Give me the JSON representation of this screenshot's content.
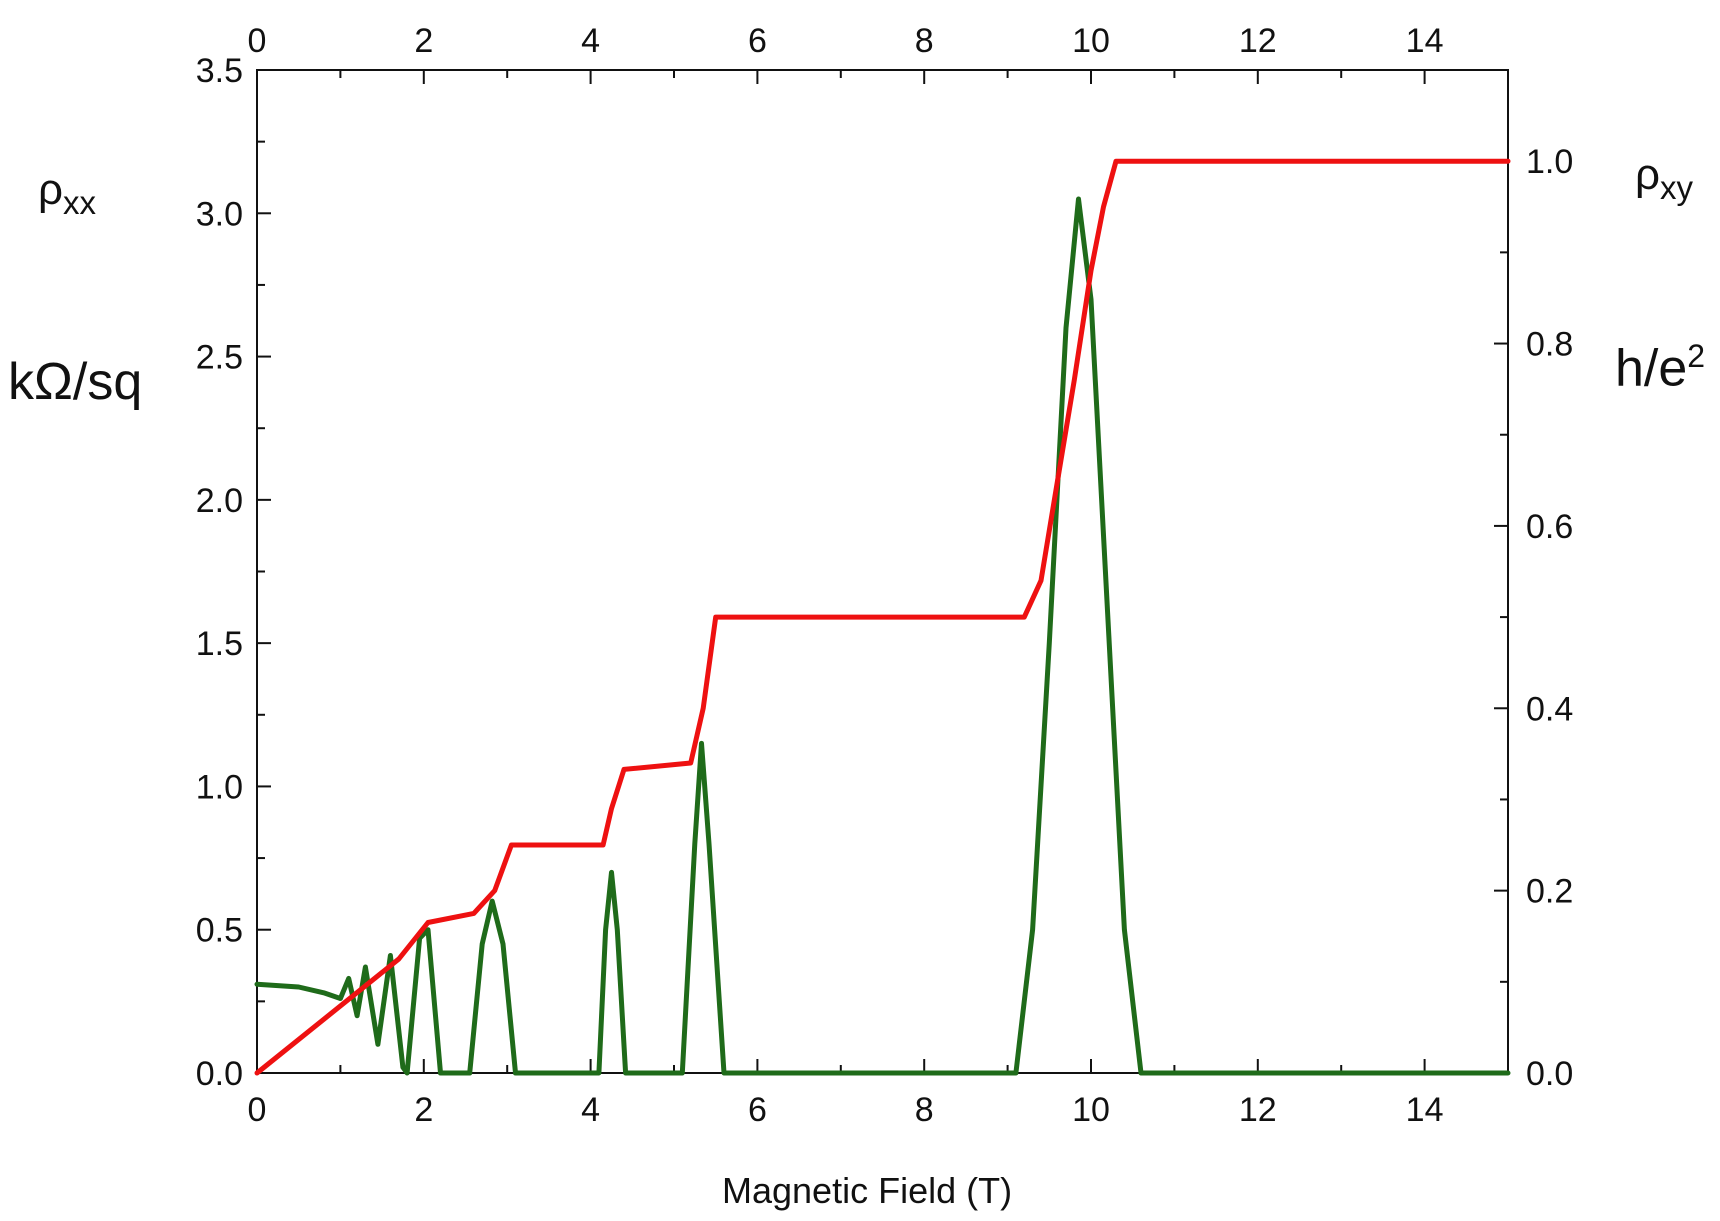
{
  "chart_data": {
    "type": "line",
    "xlabel": "Magnetic Field  (T)",
    "x_ticks": [
      0,
      2,
      4,
      6,
      8,
      10,
      12,
      14
    ],
    "xlim": [
      0,
      15
    ],
    "left_axis": {
      "symbol": "ρ",
      "subscript": "xx",
      "unit": "kΩ/sq",
      "ylim": [
        0,
        3.5
      ],
      "ticks": [
        "0.0",
        "0.5",
        "1.0",
        "1.5",
        "2.0",
        "2.5",
        "3.0",
        "3.5"
      ]
    },
    "right_axis": {
      "symbol": "ρ",
      "subscript": "xy",
      "unit_base": "h/e",
      "unit_sup": "2",
      "ylim": [
        0,
        1.1
      ],
      "ticks": [
        "0.0",
        "0.2",
        "0.4",
        "0.6",
        "0.8",
        "1.0"
      ]
    },
    "series": [
      {
        "axis": "right",
        "color": "#ee1111",
        "points": [
          [
            0,
            0
          ],
          [
            1.7,
            0.125
          ],
          [
            2.05,
            0.165
          ],
          [
            2.6,
            0.175
          ],
          [
            2.85,
            0.2
          ],
          [
            3.05,
            0.25
          ],
          [
            4.15,
            0.25
          ],
          [
            4.25,
            0.29
          ],
          [
            4.4,
            0.333
          ],
          [
            5.2,
            0.34
          ],
          [
            5.35,
            0.4
          ],
          [
            5.5,
            0.5
          ],
          [
            9.2,
            0.5
          ],
          [
            9.4,
            0.54
          ],
          [
            9.6,
            0.65
          ],
          [
            9.8,
            0.76
          ],
          [
            10.0,
            0.88
          ],
          [
            10.15,
            0.95
          ],
          [
            10.3,
            1.0
          ],
          [
            15,
            1.0
          ]
        ]
      },
      {
        "axis": "left",
        "color": "#1f6b1a",
        "points": [
          [
            0,
            0.31
          ],
          [
            0.5,
            0.3
          ],
          [
            0.8,
            0.28
          ],
          [
            1.0,
            0.26
          ],
          [
            1.1,
            0.33
          ],
          [
            1.2,
            0.2
          ],
          [
            1.3,
            0.37
          ],
          [
            1.45,
            0.1
          ],
          [
            1.6,
            0.41
          ],
          [
            1.75,
            0.02
          ],
          [
            1.8,
            0.0
          ],
          [
            1.95,
            0.47
          ],
          [
            2.05,
            0.5
          ],
          [
            2.2,
            0.0
          ],
          [
            2.55,
            0.0
          ],
          [
            2.7,
            0.45
          ],
          [
            2.82,
            0.6
          ],
          [
            2.95,
            0.45
          ],
          [
            3.1,
            0.0
          ],
          [
            4.1,
            0.0
          ],
          [
            4.18,
            0.5
          ],
          [
            4.25,
            0.7
          ],
          [
            4.32,
            0.5
          ],
          [
            4.42,
            0.0
          ],
          [
            5.1,
            0.0
          ],
          [
            5.25,
            0.8
          ],
          [
            5.33,
            1.15
          ],
          [
            5.42,
            0.8
          ],
          [
            5.6,
            0.0
          ],
          [
            9.1,
            0.0
          ],
          [
            9.3,
            0.5
          ],
          [
            9.5,
            1.5
          ],
          [
            9.7,
            2.6
          ],
          [
            9.85,
            3.05
          ],
          [
            10.0,
            2.7
          ],
          [
            10.2,
            1.6
          ],
          [
            10.4,
            0.5
          ],
          [
            10.6,
            0.0
          ],
          [
            15,
            0.0
          ]
        ]
      }
    ]
  }
}
